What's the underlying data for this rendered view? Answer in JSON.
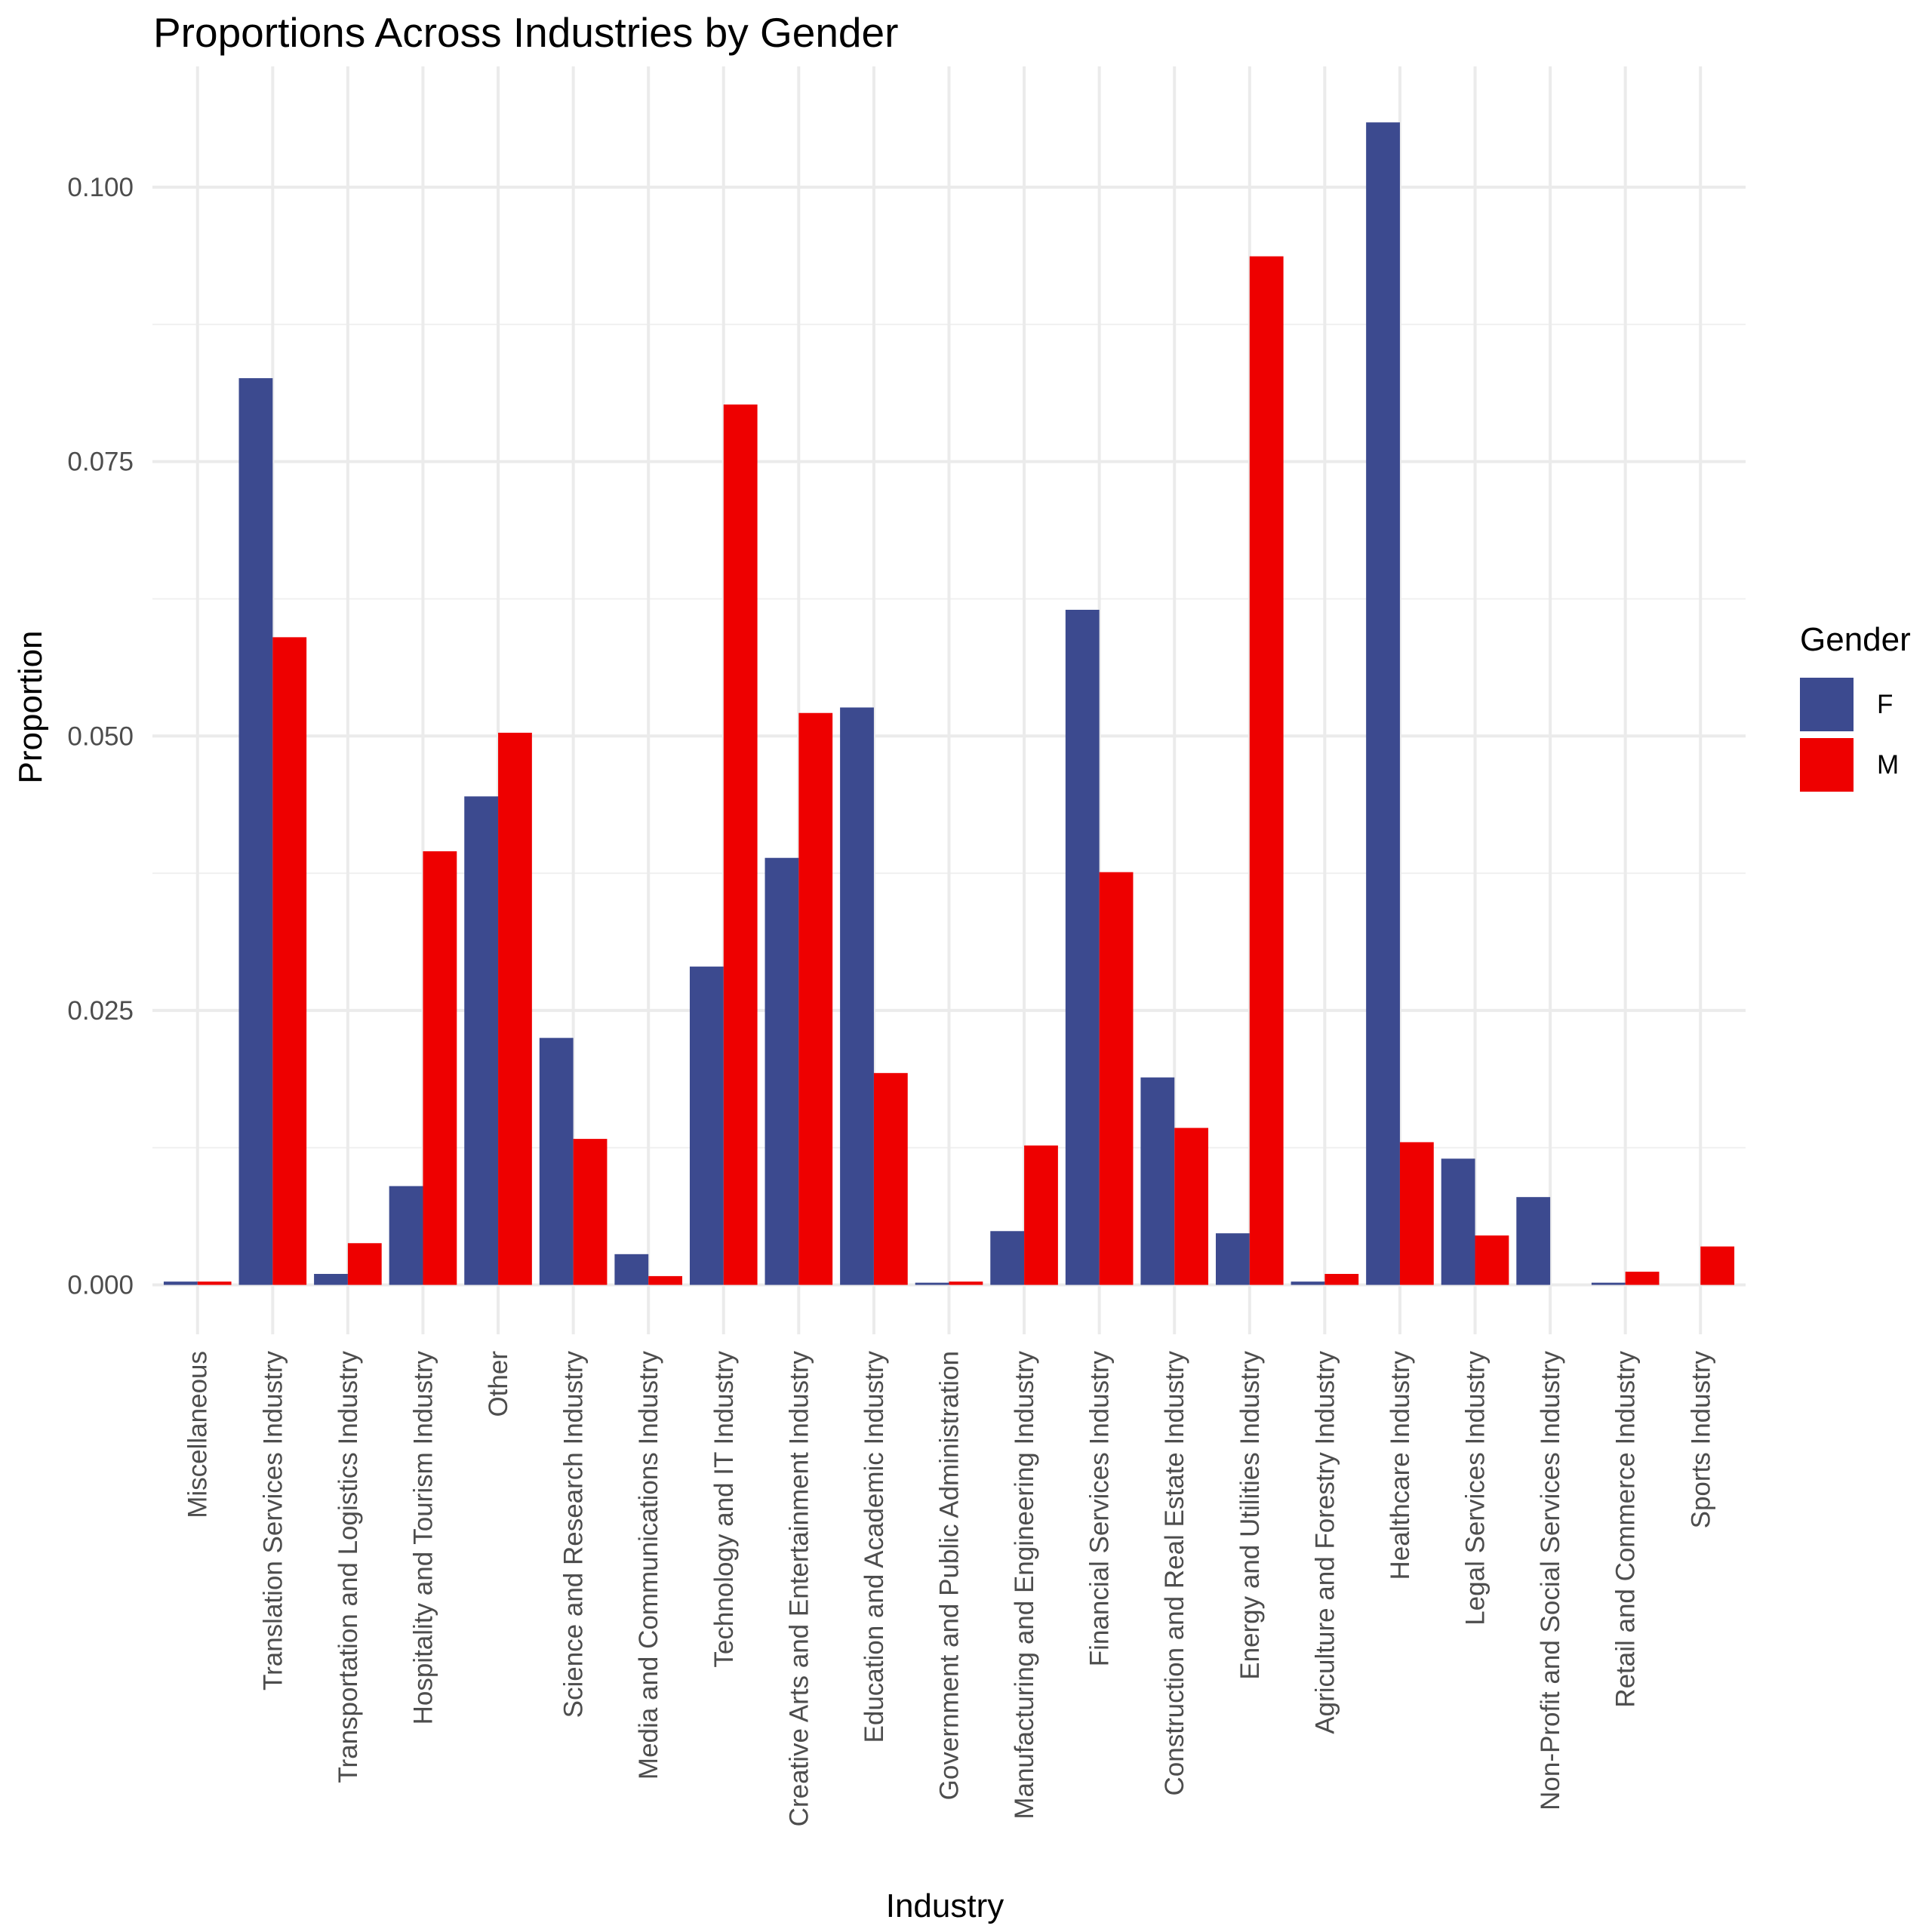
{
  "chart_data": {
    "type": "bar",
    "title": "Proportions Across Industries by Gender",
    "xlabel": "Industry",
    "ylabel": "Proportion",
    "ylim": [
      -0.0045,
      0.111
    ],
    "y_ticks": [
      0.0,
      0.025,
      0.05,
      0.075,
      0.1
    ],
    "y_tick_labels": [
      "0.000",
      "0.025",
      "0.050",
      "0.075",
      "0.100"
    ],
    "grid": true,
    "legend": {
      "title": "Gender",
      "position": "right"
    },
    "categories": [
      "Miscellaneous",
      "Translation Services Industry",
      "Transportation and Logistics Industry",
      "Hospitality and Tourism Industry",
      "Other",
      "Science and Research Industry",
      "Media and Communications Industry",
      "Technology and IT Industry",
      "Creative Arts and Entertainment Industry",
      "Education and Academic Industry",
      "Government and Public Administration",
      "Manufacturing and Engineering Industry",
      "Financial Services Industry",
      "Construction and Real Estate Industry",
      "Energy and Utilities Industry",
      "Agriculture and Forestry Industry",
      "Healthcare Industry",
      "Legal Services Industry",
      "Non-Profit and Social Services Industry",
      "Retail and Commerce Industry",
      "Sports Industry"
    ],
    "series": [
      {
        "name": "F",
        "color": "#3c4a8f",
        "values": [
          0.0003,
          0.0826,
          0.001,
          0.009,
          0.0445,
          0.0225,
          0.0028,
          0.029,
          0.0389,
          0.0526,
          0.0002,
          0.0049,
          0.0615,
          0.0189,
          0.0047,
          0.0003,
          0.1059,
          0.0115,
          0.008,
          0.0002,
          null
        ]
      },
      {
        "name": "M",
        "color": "#ee0000",
        "values": [
          0.0003,
          0.059,
          0.0038,
          0.0395,
          0.0503,
          0.0133,
          0.0008,
          0.0802,
          0.0521,
          0.0193,
          0.0003,
          0.0127,
          0.0376,
          0.0143,
          0.0937,
          0.001,
          0.013,
          0.0045,
          null,
          0.0012,
          0.0035
        ]
      }
    ]
  }
}
